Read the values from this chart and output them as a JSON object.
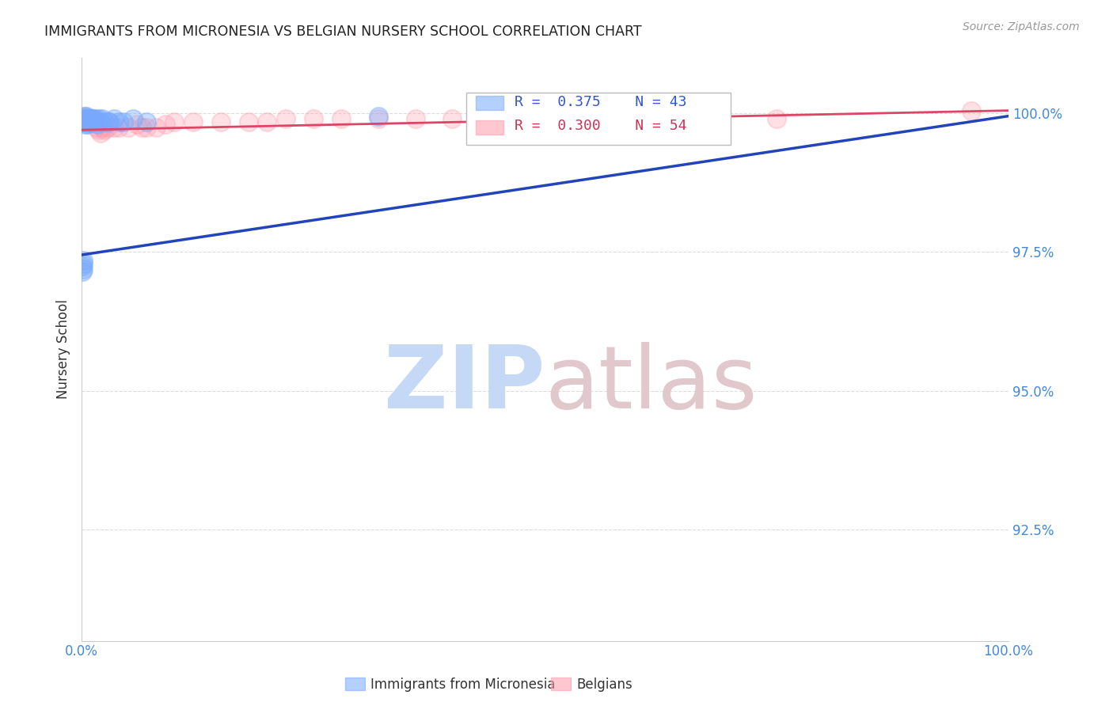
{
  "title": "IMMIGRANTS FROM MICRONESIA VS BELGIAN NURSERY SCHOOL CORRELATION CHART",
  "source": "Source: ZipAtlas.com",
  "ylabel": "Nursery School",
  "xlabel": "",
  "watermark_zip": "ZIP",
  "watermark_atlas": "atlas",
  "legend1_label": "Immigrants from Micronesia",
  "legend2_label": "Belgians",
  "R1": 0.375,
  "N1": 43,
  "R2": 0.3,
  "N2": 54,
  "blue_color": "#77aaff",
  "pink_color": "#ff99aa",
  "blue_line_color": "#2244bb",
  "pink_line_color": "#dd4466",
  "title_color": "#222222",
  "source_color": "#999999",
  "tick_color": "#4488dd",
  "grid_color": "#dddddd",
  "watermark_color_zip": "#c5d8f5",
  "watermark_color_atlas": "#e0c8cc",
  "xlim": [
    0.0,
    1.0
  ],
  "ylim": [
    0.905,
    1.01
  ],
  "yticks": [
    0.925,
    0.95,
    0.975,
    1.0
  ],
  "ytick_labels": [
    "92.5%",
    "95.0%",
    "97.5%",
    "100.0%"
  ],
  "xticks": [
    0.0,
    0.125,
    0.25,
    0.375,
    0.5,
    0.625,
    0.75,
    0.875,
    1.0
  ],
  "xtick_labels": [
    "0.0%",
    "",
    "",
    "",
    "",
    "",
    "",
    "",
    "100.0%"
  ],
  "blue_x": [
    0.001,
    0.001,
    0.002,
    0.002,
    0.002,
    0.003,
    0.003,
    0.003,
    0.004,
    0.004,
    0.004,
    0.005,
    0.005,
    0.005,
    0.006,
    0.006,
    0.006,
    0.007,
    0.007,
    0.008,
    0.008,
    0.009,
    0.01,
    0.01,
    0.011,
    0.012,
    0.013,
    0.015,
    0.016,
    0.017,
    0.018,
    0.019,
    0.02,
    0.022,
    0.025,
    0.028,
    0.03,
    0.035,
    0.04,
    0.045,
    0.055,
    0.07,
    0.32
  ],
  "blue_y": [
    0.9725,
    0.9715,
    0.973,
    0.9735,
    0.972,
    0.9995,
    0.999,
    0.9985,
    0.999,
    0.9985,
    0.998,
    0.9995,
    0.999,
    0.9985,
    0.9985,
    0.998,
    0.9985,
    0.999,
    0.9985,
    0.999,
    0.9985,
    0.9985,
    0.999,
    0.9985,
    0.9985,
    0.999,
    0.9985,
    0.999,
    0.9985,
    0.998,
    0.9985,
    0.999,
    0.9985,
    0.999,
    0.9985,
    0.9985,
    0.9985,
    0.999,
    0.9985,
    0.9985,
    0.999,
    0.9985,
    0.9995
  ],
  "pink_x": [
    0.001,
    0.002,
    0.002,
    0.003,
    0.003,
    0.004,
    0.004,
    0.005,
    0.005,
    0.005,
    0.006,
    0.006,
    0.007,
    0.008,
    0.008,
    0.009,
    0.01,
    0.01,
    0.011,
    0.012,
    0.013,
    0.013,
    0.015,
    0.016,
    0.018,
    0.02,
    0.022,
    0.025,
    0.028,
    0.03,
    0.035,
    0.04,
    0.05,
    0.06,
    0.065,
    0.07,
    0.08,
    0.09,
    0.1,
    0.12,
    0.15,
    0.18,
    0.2,
    0.22,
    0.25,
    0.28,
    0.32,
    0.36,
    0.4,
    0.45,
    0.5,
    0.6,
    0.75,
    0.96
  ],
  "pink_y": [
    0.9995,
    0.999,
    0.9985,
    0.999,
    0.9985,
    0.999,
    0.9985,
    0.999,
    0.9985,
    0.999,
    0.9985,
    0.999,
    0.9985,
    0.9985,
    0.999,
    0.9985,
    0.999,
    0.9985,
    0.9985,
    0.999,
    0.9985,
    0.999,
    0.9985,
    0.9975,
    0.997,
    0.9965,
    0.9975,
    0.997,
    0.9975,
    0.9985,
    0.9975,
    0.9975,
    0.9975,
    0.998,
    0.9975,
    0.9975,
    0.9975,
    0.998,
    0.9985,
    0.9985,
    0.9985,
    0.9985,
    0.9985,
    0.999,
    0.999,
    0.999,
    0.999,
    0.999,
    0.999,
    0.999,
    0.999,
    0.999,
    0.999,
    1.0005
  ],
  "blue_trend_x": [
    0.0,
    1.0
  ],
  "blue_trend_y": [
    0.9745,
    0.9995
  ],
  "pink_trend_x": [
    0.0,
    1.0
  ],
  "pink_trend_y": [
    0.997,
    1.0005
  ]
}
